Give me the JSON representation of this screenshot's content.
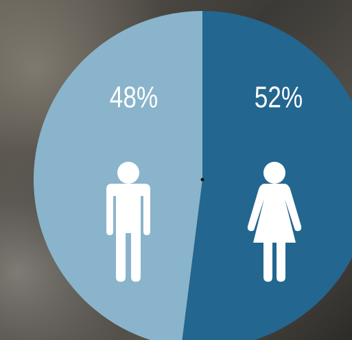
{
  "chart_data": {
    "type": "pie",
    "values": [
      52,
      48
    ],
    "value_labels": [
      "52%",
      "48%"
    ],
    "colors": [
      "#236690",
      "#8ab4cb"
    ]
  }
}
